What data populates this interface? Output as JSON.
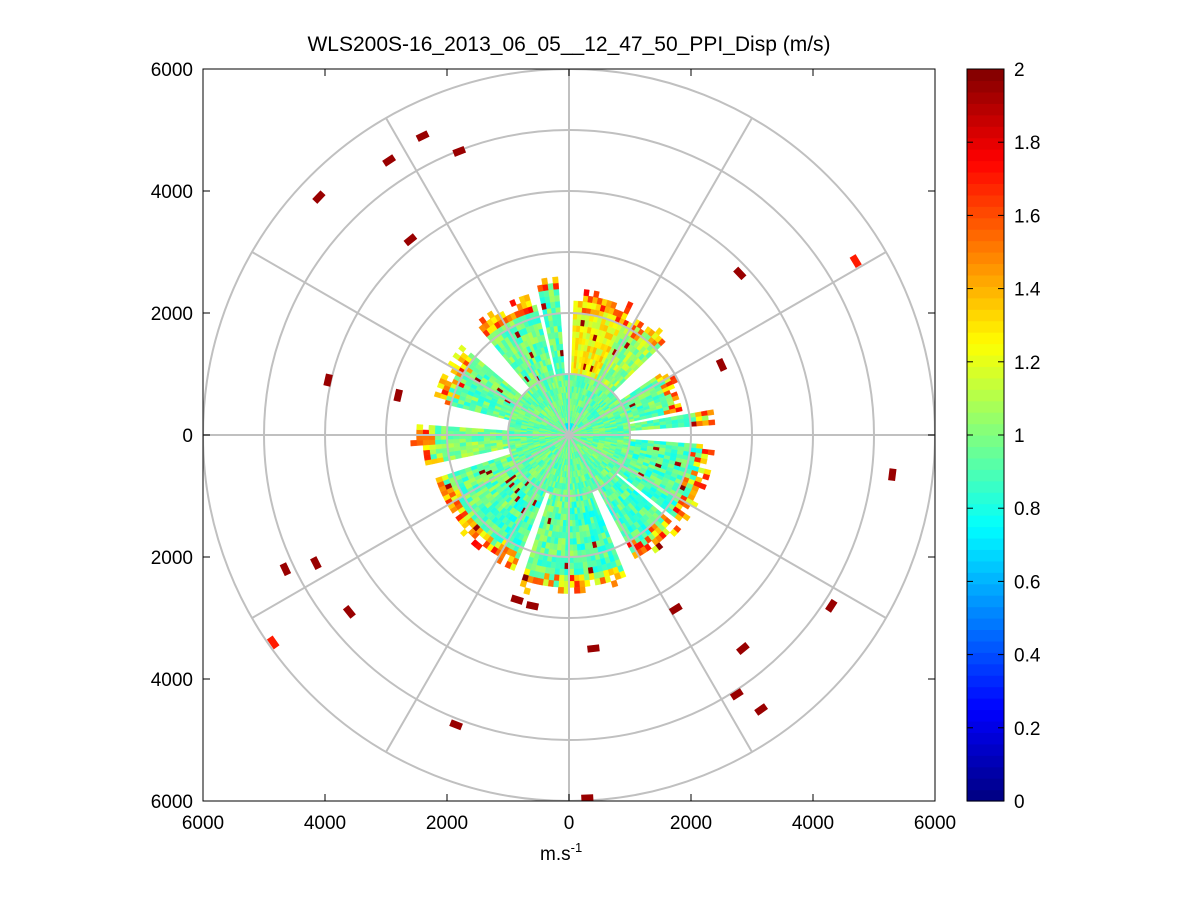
{
  "chart_data": {
    "type": "heatmap",
    "subtype": "polar-ppi",
    "title": "WLS200S-16_2013_06_05__12_47_50_PPI_Disp (m/s)",
    "xlabel": "m.s",
    "xlabel_superscript": "-1",
    "ylabel": "",
    "x_ticks": [
      "6000",
      "4000",
      "2000",
      "0",
      "2000",
      "4000",
      "6000"
    ],
    "y_ticks": [
      "6000",
      "4000",
      "2000",
      "0",
      "2000",
      "4000",
      "6000"
    ],
    "xlim": [
      -6000,
      6000
    ],
    "ylim": [
      -6000,
      6000
    ],
    "range_rings": [
      1000,
      2000,
      3000,
      4000,
      5000,
      6000
    ],
    "spoke_step_deg": 30,
    "grid": true,
    "colormap": "jet",
    "colorbar": {
      "min": 0,
      "max": 2,
      "ticks": [
        "0",
        "0.2",
        "0.4",
        "0.6",
        "0.8",
        "1",
        "1.2",
        "1.4",
        "1.6",
        "1.8",
        "2"
      ]
    },
    "data_extent_m": 2300,
    "typical_value": 0.95,
    "sectors": [
      {
        "from_deg": 2,
        "to_deg": 26,
        "max_range": 2350,
        "base": 1.25
      },
      {
        "from_deg": 26,
        "to_deg": 47,
        "max_range": 2250,
        "base": 1.05
      },
      {
        "from_deg": 56,
        "to_deg": 78,
        "max_range": 1950,
        "base": 0.95
      },
      {
        "from_deg": 81,
        "to_deg": 87,
        "max_range": 2400,
        "base": 0.95
      },
      {
        "from_deg": 95,
        "to_deg": 128,
        "max_range": 2350,
        "base": 0.9
      },
      {
        "from_deg": 131,
        "to_deg": 152,
        "max_range": 2350,
        "base": 0.9
      },
      {
        "from_deg": 158,
        "to_deg": 178,
        "max_range": 2550,
        "base": 0.9
      },
      {
        "from_deg": 178,
        "to_deg": 199,
        "max_range": 2600,
        "base": 0.95
      },
      {
        "from_deg": 202,
        "to_deg": 222,
        "max_range": 2350,
        "base": 0.9
      },
      {
        "from_deg": 223,
        "to_deg": 252,
        "max_range": 2350,
        "base": 0.95
      },
      {
        "from_deg": 258,
        "to_deg": 275,
        "max_range": 2500,
        "base": 1.0
      },
      {
        "from_deg": 285,
        "to_deg": 310,
        "max_range": 2250,
        "base": 0.95
      },
      {
        "from_deg": 320,
        "to_deg": 347,
        "max_range": 2350,
        "base": 0.95
      },
      {
        "from_deg": 349,
        "to_deg": 357,
        "max_range": 2650,
        "base": 0.95
      }
    ],
    "outliers": [
      {
        "x": -2400,
        "y": 4900,
        "v": 1.95
      },
      {
        "x": -2950,
        "y": 4500,
        "v": 1.95
      },
      {
        "x": -1800,
        "y": 4650,
        "v": 1.95
      },
      {
        "x": -4100,
        "y": 3900,
        "v": 1.95
      },
      {
        "x": -2600,
        "y": 3200,
        "v": 1.95
      },
      {
        "x": -3950,
        "y": 900,
        "v": 1.95
      },
      {
        "x": -2800,
        "y": 650,
        "v": 1.95
      },
      {
        "x": 2800,
        "y": 2650,
        "v": 1.95
      },
      {
        "x": 4700,
        "y": 2850,
        "v": 1.7
      },
      {
        "x": 2500,
        "y": 1150,
        "v": 1.95
      },
      {
        "x": 5300,
        "y": -650,
        "v": 1.95
      },
      {
        "x": -4650,
        "y": -2200,
        "v": 1.95
      },
      {
        "x": -4150,
        "y": -2100,
        "v": 1.95
      },
      {
        "x": -3600,
        "y": -2900,
        "v": 1.95
      },
      {
        "x": -4850,
        "y": -3400,
        "v": 1.7
      },
      {
        "x": -1850,
        "y": -4750,
        "v": 1.95
      },
      {
        "x": 400,
        "y": -3500,
        "v": 1.95
      },
      {
        "x": 1750,
        "y": -2850,
        "v": 1.95
      },
      {
        "x": 2850,
        "y": -3500,
        "v": 1.95
      },
      {
        "x": 4300,
        "y": -2800,
        "v": 1.95
      },
      {
        "x": 2750,
        "y": -4250,
        "v": 1.95
      },
      {
        "x": 3150,
        "y": -4500,
        "v": 1.95
      },
      {
        "x": 300,
        "y": -5950,
        "v": 1.95
      },
      {
        "x": -600,
        "y": -2800,
        "v": 1.95
      },
      {
        "x": -850,
        "y": -2700,
        "v": 1.95
      }
    ]
  }
}
